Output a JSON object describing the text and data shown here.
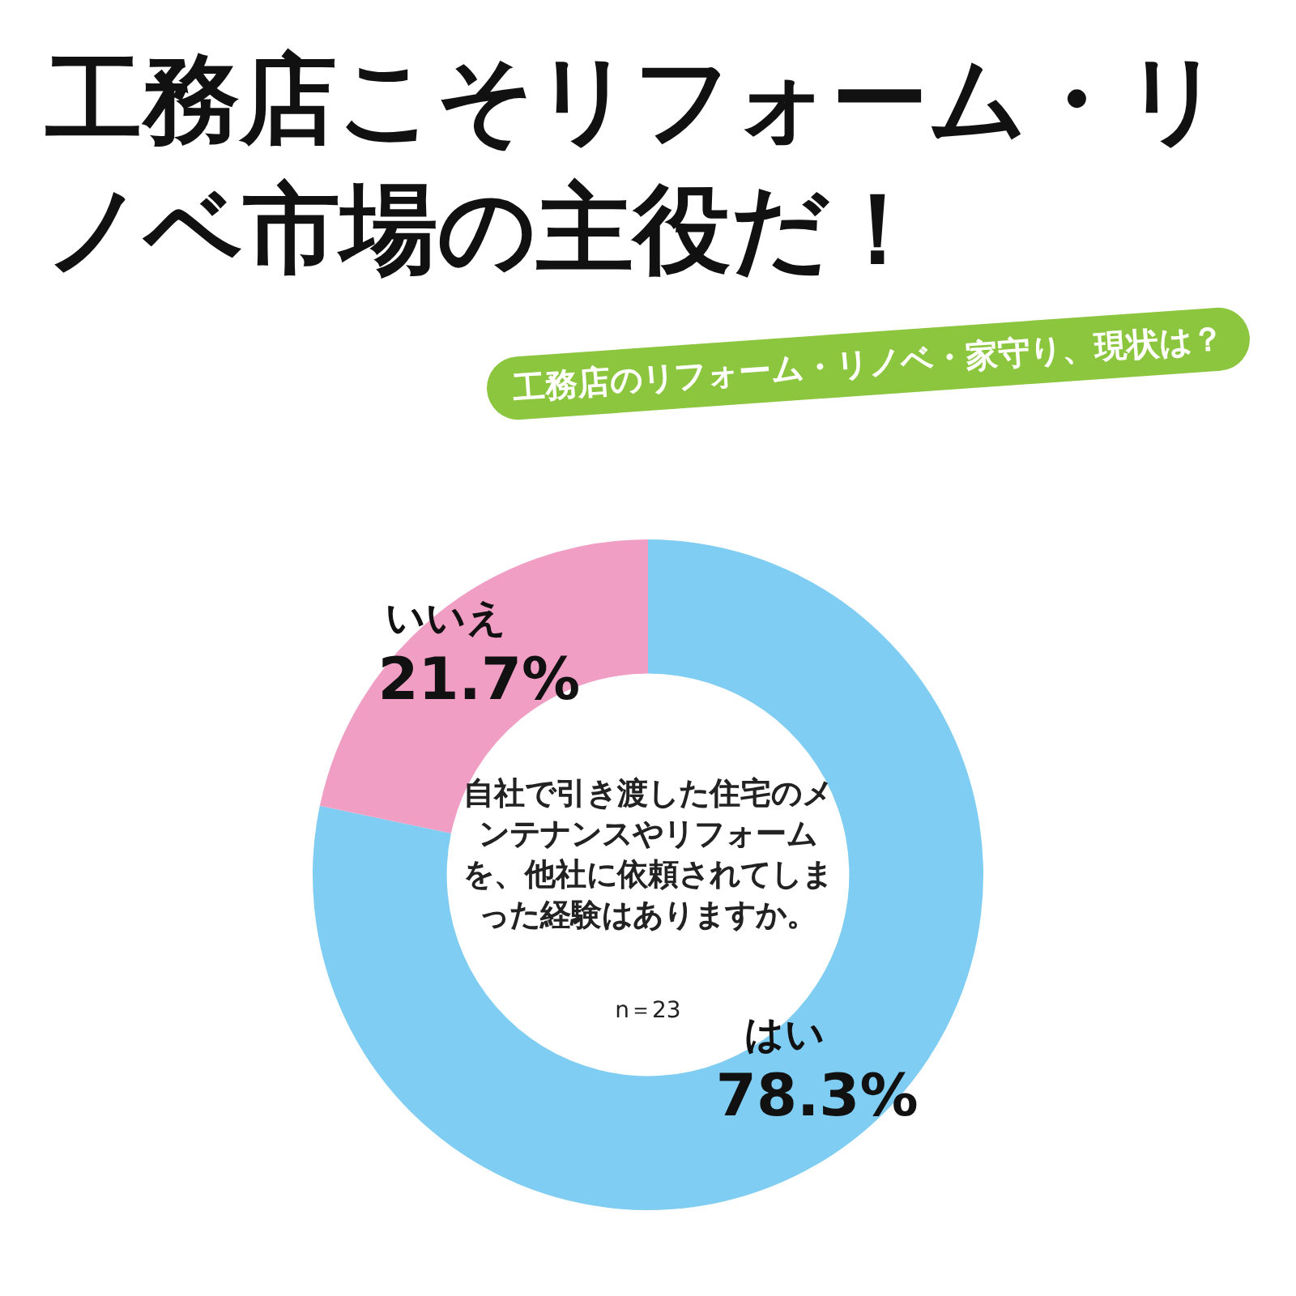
{
  "chart_data": {
    "type": "donut",
    "title": "工務店こそリフォーム・リノベ市場の主役だ！",
    "subtitle": "工務店のリフォーム・リノベ・家守り、現状は？",
    "categories": [
      "はい",
      "いいえ"
    ],
    "values": [
      78.3,
      21.7
    ],
    "colors": [
      "#7fcdf2",
      "#f19ec4"
    ],
    "value_labels": [
      "78.3%",
      "21.7%"
    ],
    "legend": false,
    "annotations": [
      "自社で引き渡した住宅のメンテナンスやリフォームを、他社に依頼されてしまった経験はありますか。",
      "n＝23"
    ]
  }
}
